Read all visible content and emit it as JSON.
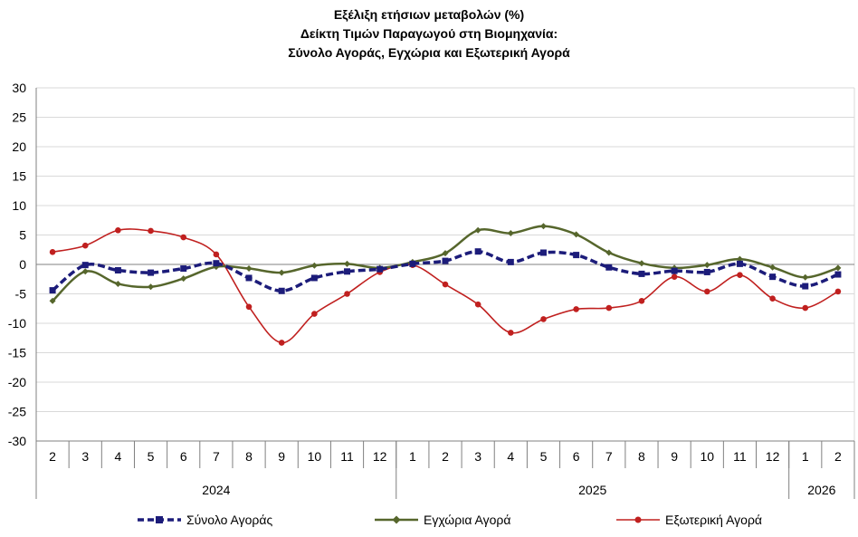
{
  "title_lines": [
    "Εξέλιξη ετήσιων μεταβολών (%)",
    "Δείκτη Τιμών Παραγωγού στη Βιομηχανία:",
    "Σύνολο Αγοράς, Εγχώρια και Εξωτερική Αγορά"
  ],
  "chart_data": {
    "type": "line",
    "title": "Εξέλιξη ετήσιων μεταβολών (%) Δείκτη Τιμών Παραγωγού στη Βιομηχανία: Σύνολο Αγοράς, Εγχώρια και Εξωτερική Αγορά",
    "x_month_labels": [
      "2",
      "3",
      "4",
      "5",
      "6",
      "7",
      "8",
      "9",
      "10",
      "11",
      "12",
      "1",
      "2",
      "3",
      "4",
      "5",
      "6",
      "7",
      "8",
      "9",
      "10",
      "11",
      "12",
      "1",
      "2"
    ],
    "x_year_groups": [
      {
        "label": "2024",
        "count": 11
      },
      {
        "label": "2025",
        "count": 12
      },
      {
        "label": "2026",
        "count": 2
      }
    ],
    "ylim": [
      -30,
      30
    ],
    "yticks": [
      30,
      25,
      20,
      15,
      10,
      5,
      0,
      -5,
      -10,
      -15,
      -20,
      -25,
      -30
    ],
    "grid": true,
    "legend_position": "bottom",
    "series": [
      {
        "name": "Σύνολο Αγοράς",
        "color": "#1c1c7a",
        "style": "dashed",
        "marker": "square",
        "values": [
          -4.4,
          -0.1,
          -1.0,
          -1.4,
          -0.7,
          0.2,
          -2.3,
          -4.5,
          -2.3,
          -1.2,
          -0.8,
          0.1,
          0.6,
          2.2,
          0.4,
          2.0,
          1.6,
          -0.5,
          -1.6,
          -1.1,
          -1.3,
          0.1,
          -2.1,
          -3.7,
          -1.7
        ]
      },
      {
        "name": "Εγχώρια Αγορά",
        "color": "#56662c",
        "style": "solid",
        "marker": "diamond",
        "values": [
          -6.2,
          -1.2,
          -3.3,
          -3.8,
          -2.4,
          -0.4,
          -0.7,
          -1.4,
          -0.2,
          0.1,
          -0.6,
          0.4,
          1.9,
          5.8,
          5.3,
          6.5,
          5.1,
          2.0,
          0.2,
          -0.6,
          -0.1,
          0.9,
          -0.5,
          -2.2,
          -0.6
        ]
      },
      {
        "name": "Εξωτερική Αγορά",
        "color": "#c0201f",
        "style": "solid",
        "marker": "circle",
        "values": [
          2.1,
          3.2,
          5.8,
          5.7,
          4.6,
          1.7,
          -7.2,
          -13.3,
          -8.4,
          -5.0,
          -1.3,
          -0.1,
          -3.4,
          -6.8,
          -11.6,
          -9.3,
          -7.6,
          -7.4,
          -6.2,
          -2.1,
          -4.6,
          -1.8,
          -5.8,
          -7.4,
          -4.6
        ]
      }
    ]
  }
}
